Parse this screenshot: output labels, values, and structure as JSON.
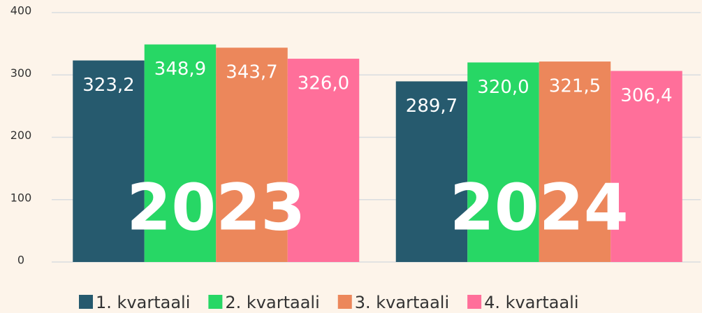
{
  "chart_data": {
    "type": "bar",
    "categories": [
      "2023",
      "2024"
    ],
    "series": [
      {
        "name": "1. kvartaali",
        "color": "#265a6e",
        "values": [
          323.2,
          289.7
        ],
        "value_labels": [
          "323,2",
          "289,7"
        ]
      },
      {
        "name": "2. kvartaali",
        "color": "#27d765",
        "values": [
          348.9,
          320.0
        ],
        "value_labels": [
          "348,9",
          "320,0"
        ]
      },
      {
        "name": "3. kvartaali",
        "color": "#ec875b",
        "values": [
          343.7,
          321.5
        ],
        "value_labels": [
          "343,7",
          "321,5"
        ]
      },
      {
        "name": "4. kvartaali",
        "color": "#ff6f9a",
        "values": [
          326.0,
          306.4
        ],
        "value_labels": [
          "326,0",
          "306,4"
        ]
      }
    ],
    "ylim": [
      0,
      400
    ],
    "yticks": [
      0,
      100,
      200,
      300,
      400
    ],
    "grid": true,
    "legend": "bottom"
  }
}
